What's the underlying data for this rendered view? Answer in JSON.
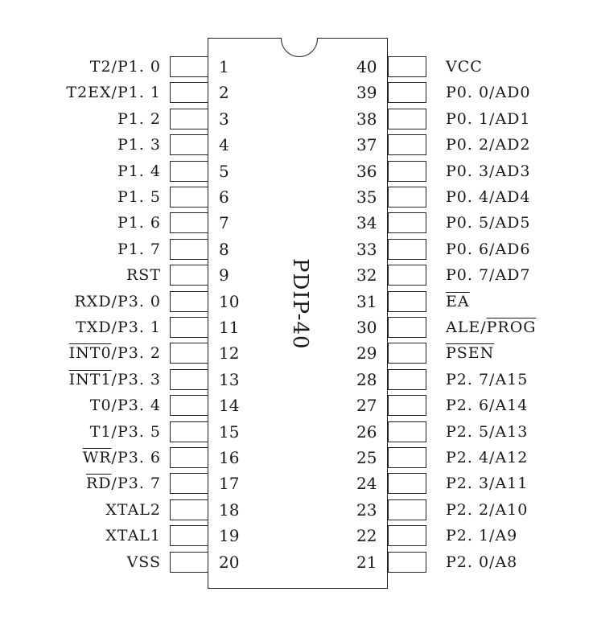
{
  "package_label": "PDIP-40",
  "pins": [
    {
      "num": "1",
      "side": "left",
      "label": "T2/P1. 0"
    },
    {
      "num": "2",
      "side": "left",
      "label": "T2EX/P1. 1"
    },
    {
      "num": "3",
      "side": "left",
      "label": "P1. 2"
    },
    {
      "num": "4",
      "side": "left",
      "label": "P1. 3"
    },
    {
      "num": "5",
      "side": "left",
      "label": "P1. 4"
    },
    {
      "num": "6",
      "side": "left",
      "label": "P1. 5"
    },
    {
      "num": "7",
      "side": "left",
      "label": "P1. 6"
    },
    {
      "num": "8",
      "side": "left",
      "label": "P1. 7"
    },
    {
      "num": "9",
      "side": "left",
      "label": "RST"
    },
    {
      "num": "10",
      "side": "left",
      "label": "RXD/P3. 0"
    },
    {
      "num": "11",
      "side": "left",
      "label": "TXD/P3. 1"
    },
    {
      "num": "12",
      "side": "left",
      "label": "INT0/P3. 2",
      "overline": "INT0"
    },
    {
      "num": "13",
      "side": "left",
      "label": "INT1/P3. 3",
      "overline": "INT1"
    },
    {
      "num": "14",
      "side": "left",
      "label": "T0/P3. 4"
    },
    {
      "num": "15",
      "side": "left",
      "label": "T1/P3. 5"
    },
    {
      "num": "16",
      "side": "left",
      "label": "WR/P3. 6",
      "overline": "WR"
    },
    {
      "num": "17",
      "side": "left",
      "label": "RD/P3. 7",
      "overline": "RD"
    },
    {
      "num": "18",
      "side": "left",
      "label": "XTAL2"
    },
    {
      "num": "19",
      "side": "left",
      "label": "XTAL1"
    },
    {
      "num": "20",
      "side": "left",
      "label": "VSS"
    },
    {
      "num": "40",
      "side": "right",
      "label": "VCC"
    },
    {
      "num": "39",
      "side": "right",
      "label": "P0. 0/AD0"
    },
    {
      "num": "38",
      "side": "right",
      "label": "P0. 1/AD1"
    },
    {
      "num": "37",
      "side": "right",
      "label": "P0. 2/AD2"
    },
    {
      "num": "36",
      "side": "right",
      "label": "P0. 3/AD3"
    },
    {
      "num": "35",
      "side": "right",
      "label": "P0. 4/AD4"
    },
    {
      "num": "34",
      "side": "right",
      "label": "P0. 5/AD5"
    },
    {
      "num": "33",
      "side": "right",
      "label": "P0. 6/AD6"
    },
    {
      "num": "32",
      "side": "right",
      "label": "P0. 7/AD7"
    },
    {
      "num": "31",
      "side": "right",
      "label": "EA",
      "overline": "EA"
    },
    {
      "num": "30",
      "side": "right",
      "label": "ALE/PROG",
      "overline": "PROG"
    },
    {
      "num": "29",
      "side": "right",
      "label": "PSEN",
      "overline": "PSEN"
    },
    {
      "num": "28",
      "side": "right",
      "label": "P2. 7/A15"
    },
    {
      "num": "27",
      "side": "right",
      "label": "P2. 6/A14"
    },
    {
      "num": "26",
      "side": "right",
      "label": "P2. 5/A13"
    },
    {
      "num": "25",
      "side": "right",
      "label": "P2. 4/A12"
    },
    {
      "num": "24",
      "side": "right",
      "label": "P2. 3/A11"
    },
    {
      "num": "23",
      "side": "right",
      "label": "P2. 2/A10"
    },
    {
      "num": "22",
      "side": "right",
      "label": "P2. 1/A9"
    },
    {
      "num": "21",
      "side": "right",
      "label": "P2. 0/A8"
    }
  ]
}
